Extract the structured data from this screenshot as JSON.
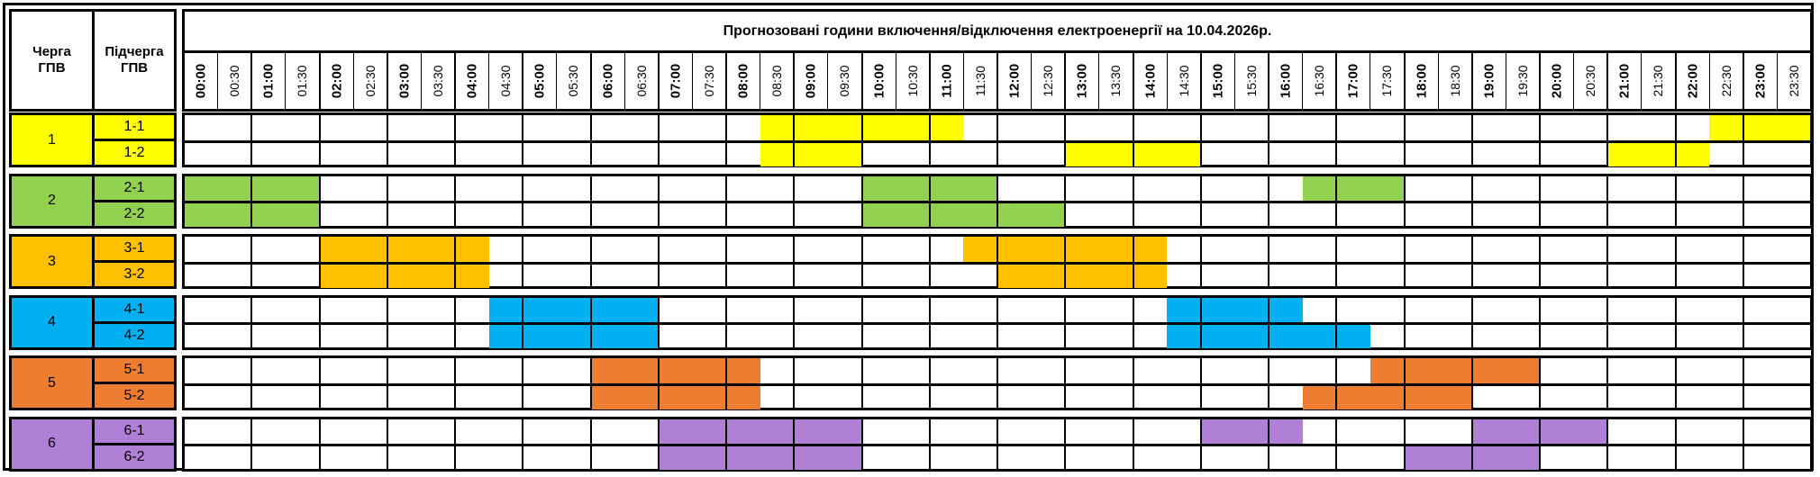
{
  "header": {
    "queue_col": "Черга\nГПВ",
    "queue_col_lines": [
      "Черга",
      "ГПВ"
    ],
    "subqueue_col_lines": [
      "Підчерга",
      "ГПВ"
    ],
    "title": "Прогнозовані години включення/відключення електроенергії на 10.04.2026р."
  },
  "time_slots": [
    "00:00",
    "00:30",
    "01:00",
    "01:30",
    "02:00",
    "02:30",
    "03:00",
    "03:30",
    "04:00",
    "04:30",
    "05:00",
    "05:30",
    "06:00",
    "06:30",
    "07:00",
    "07:30",
    "08:00",
    "08:30",
    "09:00",
    "09:30",
    "10:00",
    "10:30",
    "11:00",
    "11:30",
    "12:00",
    "12:30",
    "13:00",
    "13:30",
    "14:00",
    "14:30",
    "15:00",
    "15:30",
    "16:00",
    "16:30",
    "17:00",
    "17:30",
    "18:00",
    "18:30",
    "19:00",
    "19:30",
    "20:00",
    "20:30",
    "21:00",
    "21:30",
    "22:00",
    "22:30",
    "23:00",
    "23:30"
  ],
  "groups": [
    {
      "label": "1",
      "color": "#FFFF00",
      "subgroups": [
        {
          "label": "1-1",
          "outages": [
            [
              17,
              23
            ],
            [
              45,
              48
            ]
          ]
        },
        {
          "label": "1-2",
          "outages": [
            [
              17,
              20
            ],
            [
              26,
              30
            ],
            [
              42,
              45
            ]
          ]
        }
      ]
    },
    {
      "label": "2",
      "color": "#92D050",
      "subgroups": [
        {
          "label": "2-1",
          "outages": [
            [
              0,
              4
            ],
            [
              20,
              24
            ],
            [
              33,
              36
            ]
          ]
        },
        {
          "label": "2-2",
          "outages": [
            [
              0,
              4
            ],
            [
              20,
              26
            ]
          ]
        }
      ]
    },
    {
      "label": "3",
      "color": "#FFC000",
      "subgroups": [
        {
          "label": "3-1",
          "outages": [
            [
              4,
              9
            ],
            [
              23,
              29
            ]
          ]
        },
        {
          "label": "3-2",
          "outages": [
            [
              4,
              9
            ],
            [
              24,
              29
            ]
          ]
        }
      ]
    },
    {
      "label": "4",
      "color": "#00B0F0",
      "subgroups": [
        {
          "label": "4-1",
          "outages": [
            [
              9,
              14
            ],
            [
              29,
              33
            ]
          ]
        },
        {
          "label": "4-2",
          "outages": [
            [
              9,
              14
            ],
            [
              29,
              35
            ]
          ]
        }
      ]
    },
    {
      "label": "5",
      "color": "#ED7D31",
      "subgroups": [
        {
          "label": "5-1",
          "outages": [
            [
              12,
              17
            ],
            [
              35,
              40
            ]
          ]
        },
        {
          "label": "5-2",
          "outages": [
            [
              12,
              17
            ],
            [
              33,
              38
            ]
          ]
        }
      ]
    },
    {
      "label": "6",
      "color": "#B07FD6",
      "subgroups": [
        {
          "label": "6-1",
          "outages": [
            [
              14,
              20
            ],
            [
              30,
              33
            ],
            [
              38,
              42
            ]
          ]
        },
        {
          "label": "6-2",
          "outages": [
            [
              14,
              20
            ],
            [
              36,
              40
            ]
          ]
        }
      ]
    }
  ]
}
